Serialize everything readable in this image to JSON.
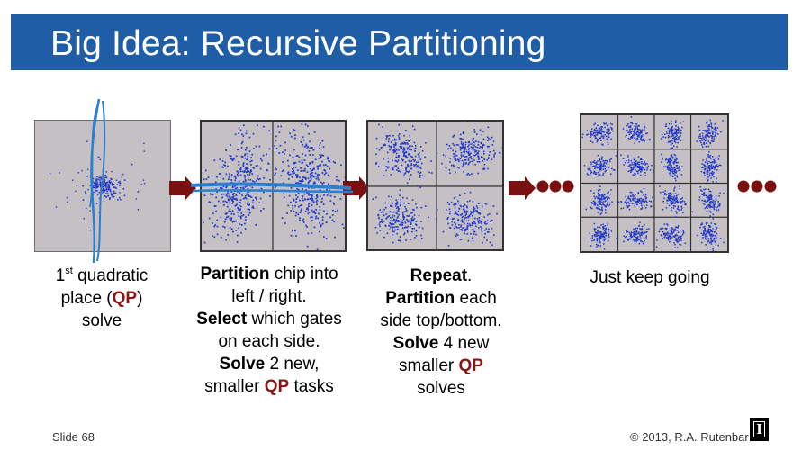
{
  "title": "Big Idea:  Recursive Partitioning",
  "steps": [
    {
      "parts": [
        {
          "t": "1"
        },
        {
          "t": "st",
          "sup": true
        },
        {
          "t": " quadratic"
        },
        {
          "br": true
        },
        {
          "t": "place ("
        },
        {
          "t": "QP",
          "qp": true
        },
        {
          "t": ")"
        },
        {
          "br": true
        },
        {
          "t": "solve"
        }
      ]
    },
    {
      "parts": [
        {
          "t": "Partition",
          "b": true
        },
        {
          "t": " chip into"
        },
        {
          "br": true
        },
        {
          "t": "left / right."
        },
        {
          "br": true
        },
        {
          "t": "Select",
          "b": true
        },
        {
          "t": " which gates"
        },
        {
          "br": true
        },
        {
          "t": "on each side."
        },
        {
          "br": true
        },
        {
          "t": "Solve",
          "b": true
        },
        {
          "t": " 2 new,"
        },
        {
          "br": true
        },
        {
          "t": "smaller "
        },
        {
          "t": "QP",
          "qp": true
        },
        {
          "t": " tasks"
        }
      ]
    },
    {
      "parts": [
        {
          "t": "Repeat",
          "b": true
        },
        {
          "t": "."
        },
        {
          "br": true
        },
        {
          "t": "Partition",
          "b": true
        },
        {
          "t": " each"
        },
        {
          "br": true
        },
        {
          "t": "side top/bottom."
        },
        {
          "br": true
        },
        {
          "t": "Solve",
          "b": true
        },
        {
          "t": " 4 new"
        },
        {
          "br": true
        },
        {
          "t": "smaller "
        },
        {
          "t": "QP",
          "qp": true
        },
        {
          "br": true
        },
        {
          "t": "solves"
        }
      ]
    },
    {
      "parts": [
        {
          "t": "Just keep going"
        }
      ]
    }
  ],
  "footer": {
    "slide": "Slide 68",
    "copyright": "© 2013, R.A. Rutenbar",
    "logo_glyph": "I"
  },
  "colors": {
    "title_bar": "#1f5ea7",
    "dots": "#2339c9",
    "arrow": "#7a1010",
    "qp": "#8b1414",
    "panel_bg": "#c4c0c4",
    "pen": "#2a7fd0"
  },
  "icons": [
    "right-arrow-icon",
    "ellipsis-icon",
    "university-logo-icon"
  ]
}
